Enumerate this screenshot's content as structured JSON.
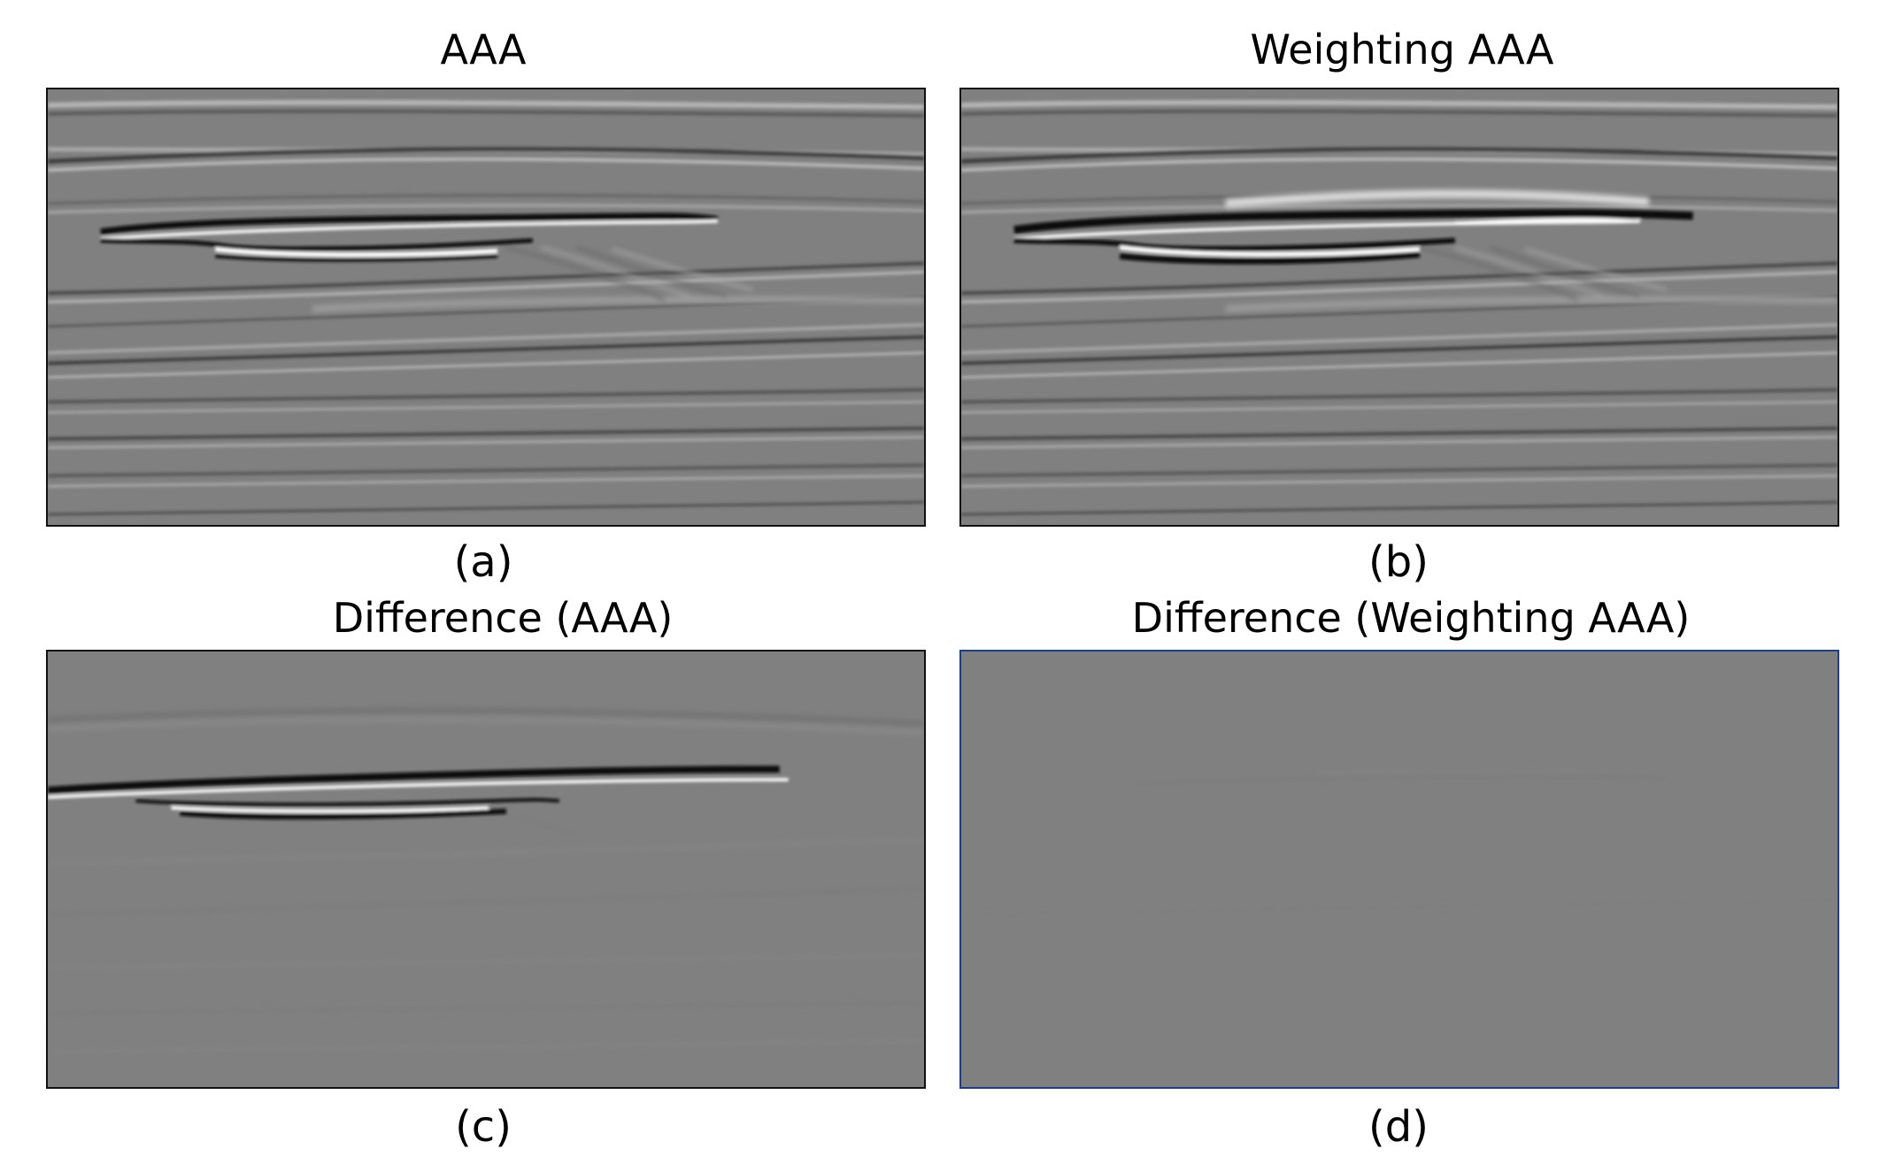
{
  "figure": {
    "panels": [
      {
        "title": "AAA",
        "caption": "(a)"
      },
      {
        "title": "Weighting AAA",
        "caption": "(b)"
      },
      {
        "title": "Difference (AAA)",
        "caption": "(c)"
      },
      {
        "title": "Difference (Weighting AAA)",
        "caption": "(d)"
      }
    ]
  },
  "colors": {
    "background": "#808080",
    "dark_event": "#111111",
    "bright_event": "#ffffff",
    "panel_d_border": "#1d3f8a"
  }
}
